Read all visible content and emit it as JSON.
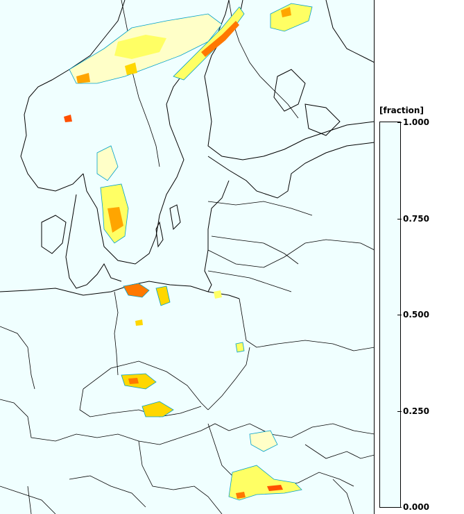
{
  "legend": {
    "unit": "[fraction]",
    "ticks": [
      {
        "value": 1.0,
        "label": "1.000"
      },
      {
        "value": 0.75,
        "label": "0.750"
      },
      {
        "value": 0.5,
        "label": "0.500"
      },
      {
        "value": 0.25,
        "label": "0.250"
      },
      {
        "value": 0.0,
        "label": "0.000"
      }
    ],
    "bins": [
      {
        "from": 0.0,
        "to": 0.125,
        "color": "#f0ffff"
      },
      {
        "from": 0.125,
        "to": 0.25,
        "color": "#ffffc8"
      },
      {
        "from": 0.25,
        "to": 0.375,
        "color": "#ffff64"
      },
      {
        "from": 0.375,
        "to": 0.5,
        "color": "#ffd700"
      },
      {
        "from": 0.5,
        "to": 0.625,
        "color": "#ffa500"
      },
      {
        "from": 0.625,
        "to": 0.75,
        "color": "#ff7800"
      },
      {
        "from": 0.75,
        "to": 0.875,
        "color": "#ff5000"
      },
      {
        "from": 0.875,
        "to": 0.9375,
        "color": "#e63200"
      },
      {
        "from": 0.9375,
        "to": 1.0,
        "color": "#b40000"
      }
    ]
  },
  "map": {
    "background_color": "#f0ffff",
    "coastline_color": "#000000",
    "contour_color": "#00a0c8"
  }
}
